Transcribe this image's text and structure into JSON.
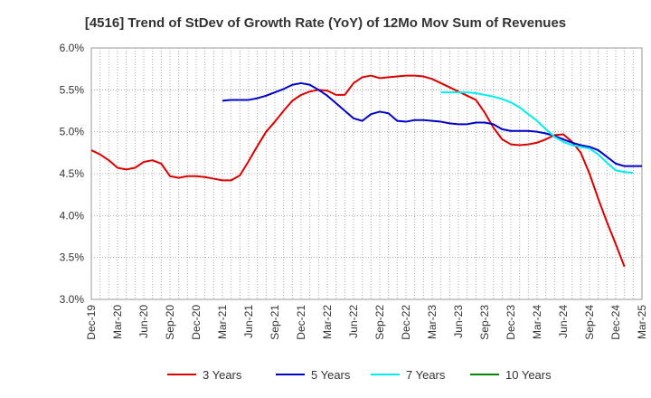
{
  "chart_data": {
    "type": "line",
    "title": "[4516]  Trend of StDev of Growth Rate (YoY) of 12Mo Mov Sum of Revenues",
    "xlabel": "",
    "ylabel": "",
    "ylim": [
      3.0,
      6.0
    ],
    "y_ticks": [
      3.0,
      3.5,
      4.0,
      4.5,
      5.0,
      5.5,
      6.0
    ],
    "y_tick_labels": [
      "3.0%",
      "3.5%",
      "4.0%",
      "4.5%",
      "5.0%",
      "5.5%",
      "6.0%"
    ],
    "x_tick_labels": [
      "Dec-19",
      "Mar-20",
      "Jun-20",
      "Sep-20",
      "Dec-20",
      "Mar-21",
      "Jun-21",
      "Sep-21",
      "Dec-21",
      "Mar-22",
      "Jun-22",
      "Sep-22",
      "Dec-22",
      "Mar-23",
      "Jun-23",
      "Sep-23",
      "Dec-23",
      "Mar-24",
      "Jun-24",
      "Sep-24",
      "Dec-24",
      "Mar-25"
    ],
    "x_start": "Dec-19",
    "x_count": 64,
    "grid": true,
    "legend_position": "bottom",
    "series": [
      {
        "name": "3 Years",
        "color": "#dd0000",
        "start_index": 0,
        "values": [
          4.78,
          4.73,
          4.66,
          4.57,
          4.55,
          4.57,
          4.64,
          4.66,
          4.62,
          4.47,
          4.45,
          4.47,
          4.47,
          4.46,
          4.44,
          4.42,
          4.42,
          4.48,
          4.65,
          4.83,
          5.0,
          5.12,
          5.25,
          5.37,
          5.44,
          5.48,
          5.5,
          5.49,
          5.44,
          5.44,
          5.58,
          5.65,
          5.67,
          5.64,
          5.65,
          5.66,
          5.67,
          5.67,
          5.66,
          5.63,
          5.58,
          5.53,
          5.48,
          5.43,
          5.38,
          5.23,
          5.05,
          4.91,
          4.85,
          4.84,
          4.85,
          4.87,
          4.91,
          4.96,
          4.97,
          4.88,
          4.75,
          4.5,
          4.2,
          3.92,
          3.66,
          3.39
        ]
      },
      {
        "name": "5 Years",
        "color": "#0000cc",
        "start_index": 15,
        "values": [
          5.37,
          5.38,
          5.38,
          5.38,
          5.4,
          5.43,
          5.47,
          5.51,
          5.56,
          5.58,
          5.56,
          5.5,
          5.43,
          5.34,
          5.25,
          5.16,
          5.13,
          5.21,
          5.24,
          5.22,
          5.13,
          5.12,
          5.14,
          5.14,
          5.13,
          5.12,
          5.1,
          5.09,
          5.09,
          5.11,
          5.11,
          5.09,
          5.03,
          5.01,
          5.01,
          5.01,
          5.0,
          4.98,
          4.95,
          4.91,
          4.87,
          4.84,
          4.82,
          4.78,
          4.7,
          4.62,
          4.59,
          4.59,
          4.59
        ]
      },
      {
        "name": "7 Years",
        "color": "#00eeee",
        "start_index": 40,
        "values": [
          5.47,
          5.47,
          5.47,
          5.47,
          5.46,
          5.44,
          5.42,
          5.39,
          5.35,
          5.29,
          5.21,
          5.13,
          5.03,
          4.94,
          4.88,
          4.84,
          4.82,
          4.8,
          4.73,
          4.63,
          4.54,
          4.52,
          4.51
        ]
      },
      {
        "name": "10 Years",
        "color": "#008800",
        "start_index": 0,
        "values": []
      }
    ]
  }
}
